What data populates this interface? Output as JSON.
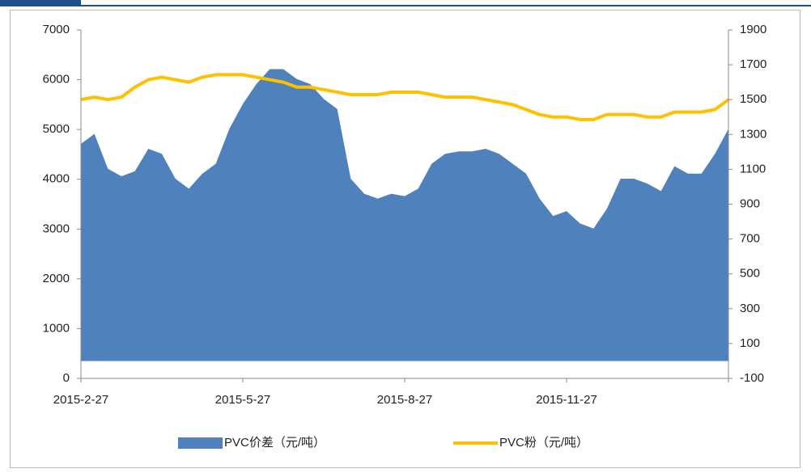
{
  "chart_data": {
    "type": "area-line",
    "categories": [
      "2015-2-27",
      null,
      null,
      null,
      null,
      null,
      null,
      null,
      null,
      null,
      null,
      null,
      "2015-5-27",
      null,
      null,
      null,
      null,
      null,
      null,
      null,
      null,
      null,
      null,
      null,
      "2015-8-27",
      null,
      null,
      null,
      null,
      null,
      null,
      null,
      null,
      null,
      null,
      null,
      "2015-11-27",
      null,
      null,
      null,
      null,
      null,
      null,
      null,
      null,
      null,
      null,
      null,
      null
    ],
    "series": [
      {
        "name": "PVC价差（元/吨）",
        "color": "#4f81bd",
        "axis": "y2",
        "kind": "area",
        "values": [
          1246,
          1303,
          1103,
          1060,
          1089,
          1218,
          1189,
          1046,
          989,
          1075,
          1132,
          1332,
          1475,
          1589,
          1675,
          1675,
          1618,
          1589,
          1504,
          1446,
          1046,
          960,
          932,
          960,
          946,
          989,
          1132,
          1189,
          1203,
          1203,
          1218,
          1189,
          1132,
          1075,
          932,
          832,
          860,
          789,
          760,
          875,
          1046,
          1046,
          1018,
          975,
          1118,
          1075,
          1075,
          1189,
          1332
        ]
      },
      {
        "name": "PVC粉（元/吨）",
        "color": "#ffc000",
        "axis": "y",
        "kind": "line",
        "values": [
          5600,
          5650,
          5600,
          5650,
          5850,
          6000,
          6050,
          6000,
          5950,
          6050,
          6100,
          6100,
          6100,
          6050,
          6000,
          5950,
          5850,
          5850,
          5800,
          5750,
          5700,
          5700,
          5700,
          5750,
          5750,
          5750,
          5700,
          5650,
          5650,
          5650,
          5600,
          5550,
          5500,
          5400,
          5300,
          5250,
          5250,
          5200,
          5200,
          5300,
          5300,
          5300,
          5250,
          5250,
          5350,
          5350,
          5350,
          5400,
          5600
        ]
      }
    ],
    "ylim": [
      0,
      7000
    ],
    "yticks": [
      0,
      1000,
      2000,
      3000,
      4000,
      5000,
      6000,
      7000
    ],
    "y2lim": [
      -100,
      1900
    ],
    "y2ticks": [
      -100,
      100,
      300,
      500,
      700,
      900,
      1100,
      1300,
      1500,
      1700,
      1900
    ],
    "legend": "bottom"
  }
}
